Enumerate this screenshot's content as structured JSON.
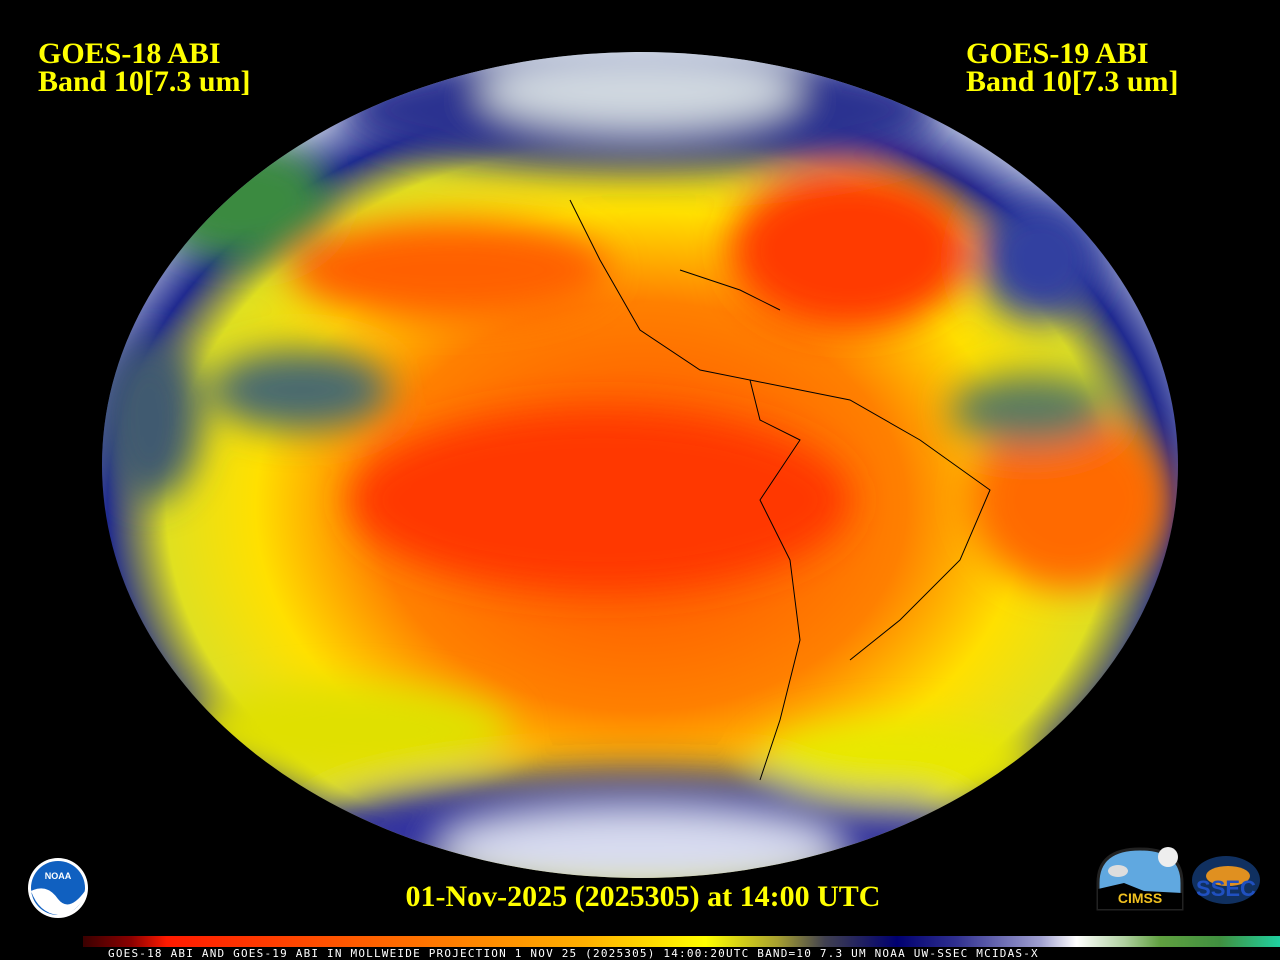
{
  "left_title": {
    "line1": "GOES-18 ABI",
    "line2": "Band 10[7.3 um]"
  },
  "right_title": {
    "line1": "GOES-19 ABI",
    "line2": "Band 10[7.3 um]"
  },
  "timestamp": "01-Nov-2025 (2025305) at 14:00 UTC",
  "caption": "GOES-18 ABI AND GOES-19 ABI IN MOLLWEIDE PROJECTION 1 NOV 25 (2025305) 14:00:20UTC BAND=10 7.3 UM NOAA UW-SSEC MCIDAS-X",
  "projection": "Mollweide",
  "logos": {
    "noaa": "NOAA",
    "cimss": "CIMSS",
    "ssec": "SSEC"
  },
  "colors": {
    "title": "#ffff00",
    "background": "#000000",
    "dry": "#ff3a00",
    "moist": "#ffffff",
    "cold": "#409040"
  }
}
